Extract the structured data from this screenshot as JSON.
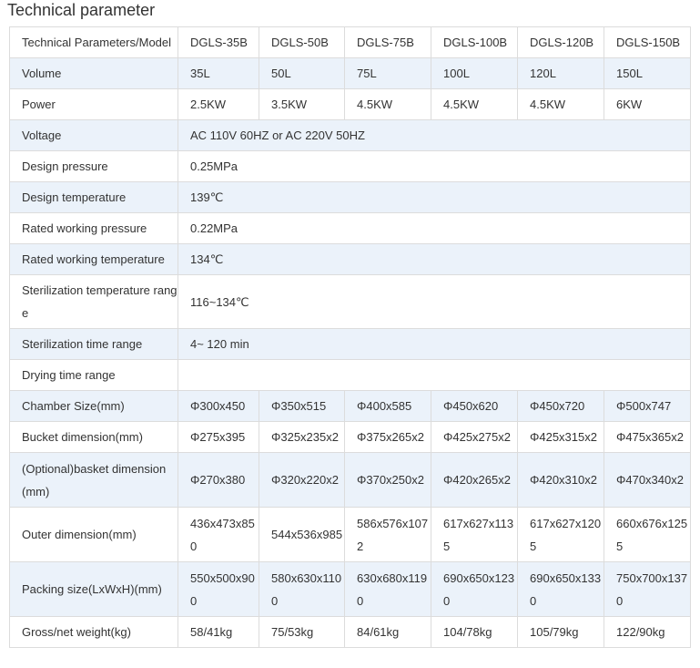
{
  "title": "Technical parameter",
  "rows": [
    {
      "label": "Technical Parameters/Model",
      "values": [
        "DGLS-35B",
        "DGLS-50B",
        "DGLS-75B",
        "DGLS-100B",
        "DGLS-120B",
        "DGLS-150B"
      ]
    },
    {
      "label": "Volume",
      "values": [
        "35L",
        "50L",
        "75L",
        "100L",
        "120L",
        "150L"
      ]
    },
    {
      "label": "Power",
      "values": [
        "2.5KW",
        "3.5KW",
        "4.5KW",
        "4.5KW",
        "4.5KW",
        "6KW"
      ]
    },
    {
      "label": "Voltage",
      "values": [
        "AC 110V 60HZ or AC 220V 50HZ"
      ]
    },
    {
      "label": "Design pressure",
      "values": [
        "0.25MPa"
      ]
    },
    {
      "label": "Design temperature",
      "values": [
        "139℃"
      ]
    },
    {
      "label": "Rated working pressure",
      "values": [
        "0.22MPa"
      ]
    },
    {
      "label": "Rated working temperature",
      "values": [
        "134℃"
      ]
    },
    {
      "label": "Sterilization temperature range",
      "values": [
        "116~134℃"
      ]
    },
    {
      "label": "Sterilization time range",
      "values": [
        "4~ 120 min"
      ]
    },
    {
      "label": "Drying time range",
      "values": [
        ""
      ]
    },
    {
      "label": "Chamber Size(mm)",
      "values": [
        "Φ300x450",
        "Φ350x515",
        "Φ400x585",
        "Φ450x620",
        "Φ450x720",
        "Φ500x747"
      ]
    },
    {
      "label": "Bucket dimension(mm)",
      "values": [
        "Φ275x395",
        "Φ325x235x2",
        "Φ375x265x2",
        "Φ425x275x2",
        "Φ425x315x2",
        "Φ475x365x2"
      ]
    },
    {
      "label": "(Optional)basket dimension(mm)",
      "values": [
        "Φ270x380",
        "Φ320x220x2",
        "Φ370x250x2",
        "Φ420x265x2",
        "Φ420x310x2",
        "Φ470x340x2"
      ]
    },
    {
      "label": "Outer dimension(mm)",
      "values": [
        "436x473x850",
        "544x536x985",
        "586x576x1072",
        "617x627x1135",
        "617x627x1205",
        "660x676x1255"
      ]
    },
    {
      "label": "Packing size(LxWxH)(mm)",
      "values": [
        "550x500x900",
        "580x630x1100",
        "630x680x1190",
        "690x650x1230",
        "690x650x1330",
        "750x700x1370"
      ]
    },
    {
      "label": "Gross/net weight(kg)",
      "values": [
        "58/41kg",
        "75/53kg",
        "84/61kg",
        "104/78kg",
        "105/79kg",
        "122/90kg"
      ]
    }
  ]
}
